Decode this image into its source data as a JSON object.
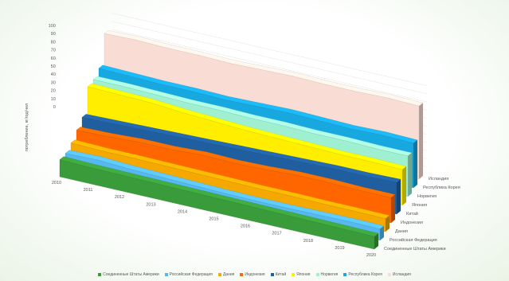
{
  "chart_data": {
    "type": "area",
    "subtype": "3d-area",
    "ylabel": "потребление, кг/год/чел",
    "ylim": [
      0,
      100
    ],
    "y_ticks": [
      0,
      10,
      20,
      30,
      40,
      50,
      60,
      70,
      80,
      90,
      100
    ],
    "categories": [
      "2010",
      "2011",
      "2012",
      "2013",
      "2014",
      "2015",
      "2016",
      "2017",
      "2018",
      "2019",
      "2020"
    ],
    "grid": true,
    "legend_position": "bottom",
    "series": [
      {
        "name": "Соединенные Штаты Америки",
        "color": "#3a9b3a",
        "values": [
          21,
          20,
          19.5,
          19,
          18.5,
          18,
          17.5,
          17,
          16.5,
          16,
          15.5
        ]
      },
      {
        "name": "Российская Федерация",
        "color": "#55b8f0",
        "values": [
          18,
          19,
          17,
          16,
          15,
          14,
          13.5,
          13.5,
          14,
          14.5,
          14
        ]
      },
      {
        "name": "Дания",
        "color": "#f5a800",
        "values": [
          20,
          19,
          19,
          18.5,
          18,
          17.5,
          17,
          17,
          16.5,
          16.5,
          16
        ]
      },
      {
        "name": "Индонезия",
        "color": "#ff6600",
        "values": [
          25,
          26,
          28,
          28,
          30,
          29,
          30,
          32,
          32,
          31,
          31
        ]
      },
      {
        "name": "Китай",
        "color": "#1f5fa0",
        "values": [
          30,
          31,
          32,
          33,
          34,
          35,
          36,
          37,
          38,
          38,
          39
        ]
      },
      {
        "name": "Япония",
        "color": "#ffee00",
        "values": [
          57,
          56,
          55,
          52,
          50,
          48,
          47,
          46,
          45,
          45,
          44
        ]
      },
      {
        "name": "Норвегия",
        "color": "#9ef0d0",
        "values": [
          55,
          55,
          54,
          53,
          53,
          52,
          52,
          51,
          51,
          50,
          50
        ]
      },
      {
        "name": "Республика Корея",
        "color": "#18a8e0",
        "values": [
          58,
          57,
          56,
          56,
          55,
          56,
          57,
          56,
          55,
          56,
          55
        ]
      },
      {
        "name": "Исландия",
        "color": "#f9ddd5",
        "values": [
          90,
          91,
          90,
          90,
          89,
          90,
          91,
          90,
          90,
          91,
          90
        ]
      }
    ]
  }
}
